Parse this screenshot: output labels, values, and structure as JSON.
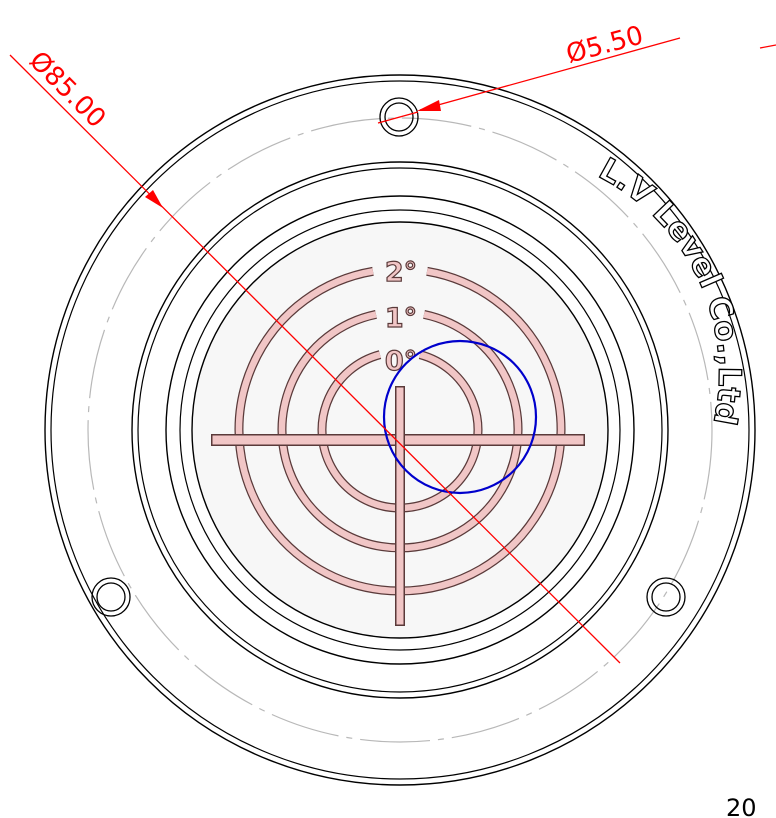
{
  "dimensions": {
    "outer_diameter": "Ø85.00",
    "hole_diameter": "Ø5.50",
    "corner_value": "20"
  },
  "brand": "L.V Level Co.,Ltd",
  "degree_marks": [
    "0°",
    "1°",
    "2°"
  ],
  "colors": {
    "outline": "#000000",
    "center_line": "#b8b8b8",
    "dimension": "#ff0000",
    "bubble": "#0000cc",
    "target_fill": "#f1c6c6",
    "target_stroke": "#5a3a3a",
    "face_fill": "#f7f7f7"
  }
}
